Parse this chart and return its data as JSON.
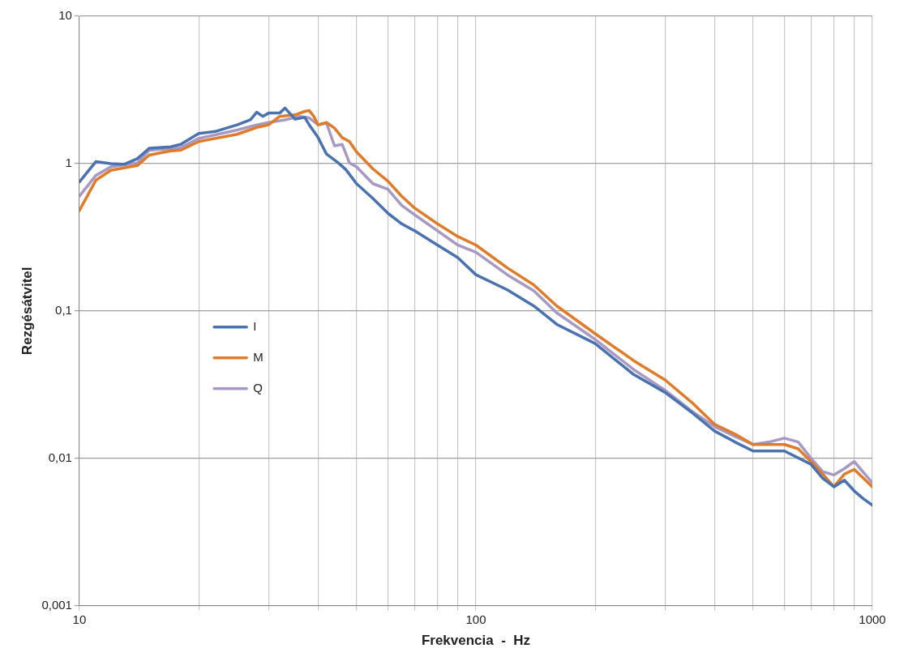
{
  "chart_data": {
    "type": "line",
    "xlabel": "Frekvencia  -  Hz",
    "ylabel": "Rezgésátvitel",
    "log": "xy",
    "grid": true,
    "legend": "left",
    "marker": "none",
    "line_style": "solid",
    "xlim": [
      10,
      1000
    ],
    "ylim": [
      0.001,
      10
    ],
    "xticks": [
      10,
      {
        "value": 20,
        "label": null
      },
      {
        "value": 30,
        "label": null
      },
      {
        "value": 40,
        "label": null
      },
      {
        "value": 50,
        "label": null
      },
      {
        "value": 60,
        "label": null
      },
      {
        "value": 70,
        "label": null
      },
      {
        "value": 80,
        "label": null
      },
      {
        "value": 90,
        "label": null
      },
      100,
      {
        "value": 200,
        "label": null
      },
      {
        "value": 300,
        "label": null
      },
      {
        "value": 400,
        "label": null
      },
      {
        "value": 500,
        "label": null
      },
      {
        "value": 600,
        "label": null
      },
      {
        "value": 700,
        "label": null
      },
      {
        "value": 800,
        "label": null
      },
      {
        "value": 900,
        "label": null
      },
      1000
    ],
    "yticks": [
      {
        "value": 0.001,
        "label": "0,001"
      },
      {
        "value": 0.01,
        "label": "0,01"
      },
      {
        "value": 0.1,
        "label": "0,1"
      },
      1,
      10
    ],
    "series": [
      {
        "name": "I",
        "color": "#4a72b0",
        "x": [
          10,
          11,
          12,
          13,
          14,
          15,
          17,
          18,
          20,
          22,
          25,
          27,
          28,
          29,
          30,
          32,
          33,
          35,
          37,
          38,
          40,
          42,
          45,
          47,
          50,
          55,
          60,
          65,
          70,
          80,
          90,
          100,
          120,
          140,
          160,
          200,
          250,
          300,
          350,
          400,
          450,
          500,
          600,
          700,
          750,
          800,
          850,
          900,
          950,
          1000
        ],
        "values": [
          0.75,
          1.03,
          1.0,
          0.99,
          1.08,
          1.27,
          1.3,
          1.35,
          1.6,
          1.65,
          1.83,
          1.98,
          2.23,
          2.09,
          2.2,
          2.2,
          2.38,
          2.0,
          2.06,
          1.83,
          1.5,
          1.16,
          1.01,
          0.91,
          0.73,
          0.58,
          0.46,
          0.39,
          0.35,
          0.28,
          0.23,
          0.176,
          0.139,
          0.108,
          0.081,
          0.06,
          0.037,
          0.028,
          0.0205,
          0.0153,
          0.0129,
          0.0112,
          0.0112,
          0.0091,
          0.0073,
          0.0064,
          0.0071,
          0.006,
          0.0053,
          0.0048
        ]
      },
      {
        "name": "M",
        "color": "#e07b29",
        "x": [
          10,
          11,
          12,
          14,
          15,
          17,
          18,
          20,
          25,
          28,
          30,
          32,
          35,
          37,
          38,
          39,
          40,
          42,
          44,
          46,
          48,
          50,
          55,
          60,
          65,
          70,
          80,
          90,
          100,
          120,
          140,
          160,
          200,
          250,
          300,
          350,
          400,
          450,
          500,
          600,
          650,
          700,
          750,
          800,
          850,
          900,
          1000
        ],
        "values": [
          0.48,
          0.77,
          0.9,
          0.97,
          1.14,
          1.22,
          1.23,
          1.41,
          1.58,
          1.76,
          1.83,
          2.09,
          2.14,
          2.26,
          2.29,
          2.09,
          1.83,
          1.9,
          1.74,
          1.5,
          1.41,
          1.2,
          0.92,
          0.76,
          0.6,
          0.5,
          0.39,
          0.32,
          0.28,
          0.196,
          0.15,
          0.108,
          0.07,
          0.046,
          0.034,
          0.024,
          0.017,
          0.0146,
          0.0124,
          0.0124,
          0.0116,
          0.0095,
          0.0078,
          0.0064,
          0.0078,
          0.0084,
          0.0064
        ]
      },
      {
        "name": "Q",
        "color": "#a799c4",
        "x": [
          10,
          11,
          12,
          14,
          15,
          18,
          20,
          25,
          28,
          30,
          33,
          36,
          38,
          40,
          42,
          44,
          46,
          48,
          50,
          55,
          60,
          65,
          70,
          80,
          90,
          100,
          120,
          140,
          160,
          200,
          250,
          300,
          350,
          400,
          450,
          500,
          550,
          600,
          650,
          700,
          750,
          800,
          850,
          900,
          1000
        ],
        "values": [
          0.6,
          0.83,
          0.95,
          1.01,
          1.23,
          1.28,
          1.48,
          1.69,
          1.83,
          1.9,
          1.98,
          2.09,
          2.04,
          1.83,
          1.88,
          1.32,
          1.35,
          1.01,
          0.95,
          0.73,
          0.67,
          0.52,
          0.45,
          0.35,
          0.28,
          0.25,
          0.176,
          0.137,
          0.097,
          0.064,
          0.04,
          0.029,
          0.0209,
          0.0164,
          0.0141,
          0.0124,
          0.0129,
          0.0137,
          0.0129,
          0.01,
          0.0081,
          0.0077,
          0.0085,
          0.0095,
          0.0068
        ]
      }
    ]
  }
}
